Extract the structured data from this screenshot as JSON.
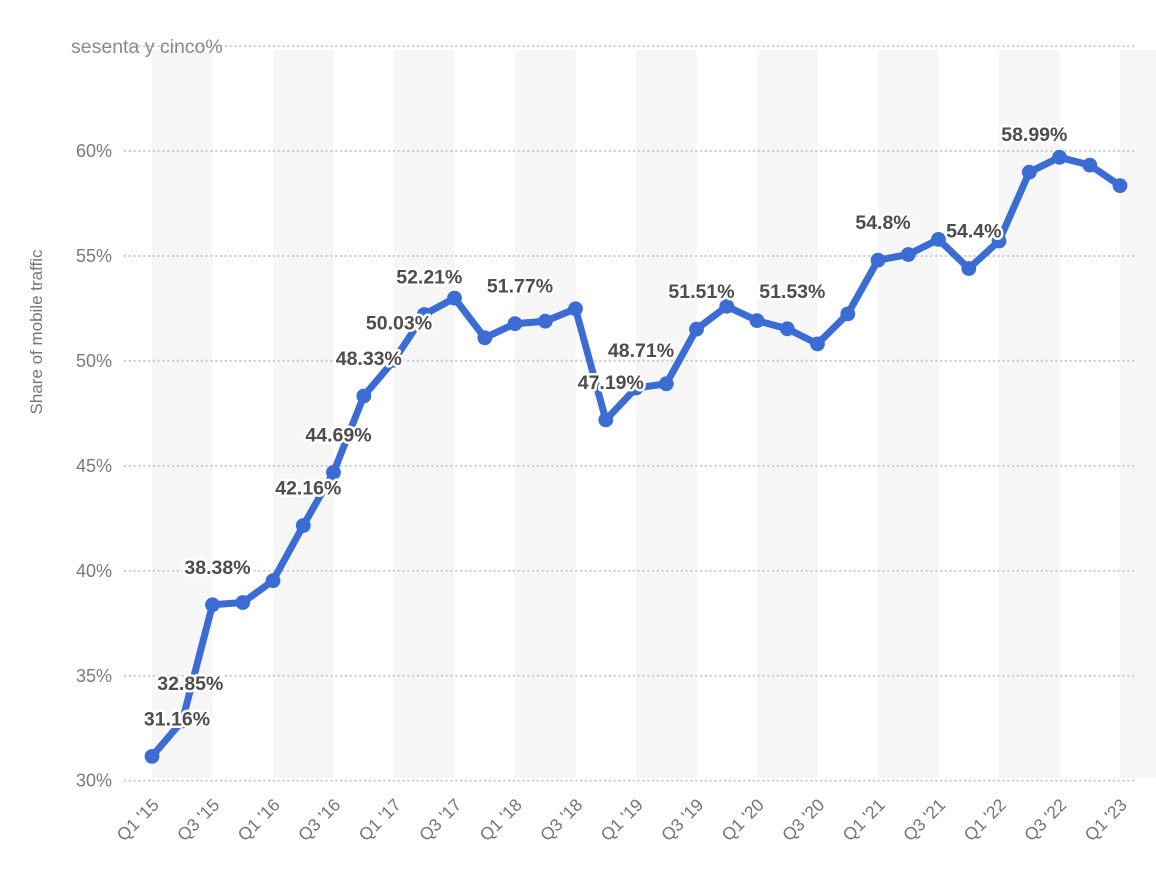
{
  "chart_data": {
    "type": "line",
    "title": "",
    "ylabel": "Share of mobile traffic",
    "xlabel": "",
    "ylim": [
      30,
      65
    ],
    "grid": "horizontal-dotted",
    "legend_position": "none",
    "background_bands": "alternating half-year vertical stripes",
    "categories": [
      "Q1 '15",
      "Q2 '15",
      "Q3 '15",
      "Q4 '15",
      "Q1 '16",
      "Q2 '16",
      "Q3 '16",
      "Q4 '16",
      "Q1 '17",
      "Q2 '17",
      "Q3 '17",
      "Q4 '17",
      "Q1 '18",
      "Q2 '18",
      "Q3 '18",
      "Q4 '18",
      "Q1 '19",
      "Q2 '19",
      "Q3 '19",
      "Q4 '19",
      "Q1 '20",
      "Q2 '20",
      "Q3 '20",
      "Q4 '20",
      "Q1 '21",
      "Q2 '21",
      "Q3 '21",
      "Q4 '21",
      "Q1 '22",
      "Q2 '22",
      "Q3 '22",
      "Q4 '22",
      "Q1 '23"
    ],
    "values": [
      31.16,
      32.85,
      38.38,
      38.49,
      39.53,
      42.16,
      44.69,
      48.33,
      50.03,
      52.21,
      52.99,
      51.1,
      51.77,
      51.89,
      52.48,
      47.19,
      48.71,
      48.91,
      51.51,
      52.6,
      51.92,
      51.53,
      50.81,
      52.24,
      54.8,
      55.07,
      55.79,
      54.4,
      55.71,
      58.99,
      59.7,
      59.33,
      58.35
    ],
    "x_tick_labels": [
      "Q1 '15",
      "Q3 '15",
      "Q1 '16",
      "Q3 '16",
      "Q1 '17",
      "Q3 '17",
      "Q1 '18",
      "Q3 '18",
      "Q1 '19",
      "Q3 '19",
      "Q1 '20",
      "Q3 '20",
      "Q1 '21",
      "Q3 '21",
      "Q1 '22",
      "Q3 '22",
      "Q1 '23"
    ],
    "x_tick_every": 2,
    "y_ticks": [
      {
        "value": 30,
        "label": "30%"
      },
      {
        "value": 35,
        "label": "35%"
      },
      {
        "value": 40,
        "label": "40%"
      },
      {
        "value": 45,
        "label": "45%"
      },
      {
        "value": 50,
        "label": "50%"
      },
      {
        "value": 55,
        "label": "55%"
      },
      {
        "value": 60,
        "label": "60%"
      },
      {
        "value": 65,
        "label": "sesenta y cinco%"
      }
    ],
    "point_labels": [
      {
        "index": 0,
        "text": "31.16%",
        "dx": 25
      },
      {
        "index": 1,
        "text": "32.85%",
        "dx": 8
      },
      {
        "index": 2,
        "text": "38.38%"
      },
      {
        "index": 5,
        "text": "42.16%"
      },
      {
        "index": 6,
        "text": "44.69%"
      },
      {
        "index": 7,
        "text": "48.33%"
      },
      {
        "index": 8,
        "text": "50.03%"
      },
      {
        "index": 9,
        "text": "52.21%"
      },
      {
        "index": 12,
        "text": "51.77%"
      },
      {
        "index": 15,
        "text": "47.19%"
      },
      {
        "index": 16,
        "text": "48.71%"
      },
      {
        "index": 18,
        "text": "51.51%"
      },
      {
        "index": 21,
        "text": "51.53%"
      },
      {
        "index": 24,
        "text": "54.8%"
      },
      {
        "index": 27,
        "text": "54.4%"
      },
      {
        "index": 29,
        "text": "58.99%"
      }
    ],
    "colors": {
      "line": "#3a6cd4",
      "marker": "#3a6cd4",
      "grid": "#c9c9c9",
      "band": "#f6f6f6",
      "data_label": "#4d4d4d",
      "axis_label": "#767676",
      "background": "#ffffff"
    }
  }
}
